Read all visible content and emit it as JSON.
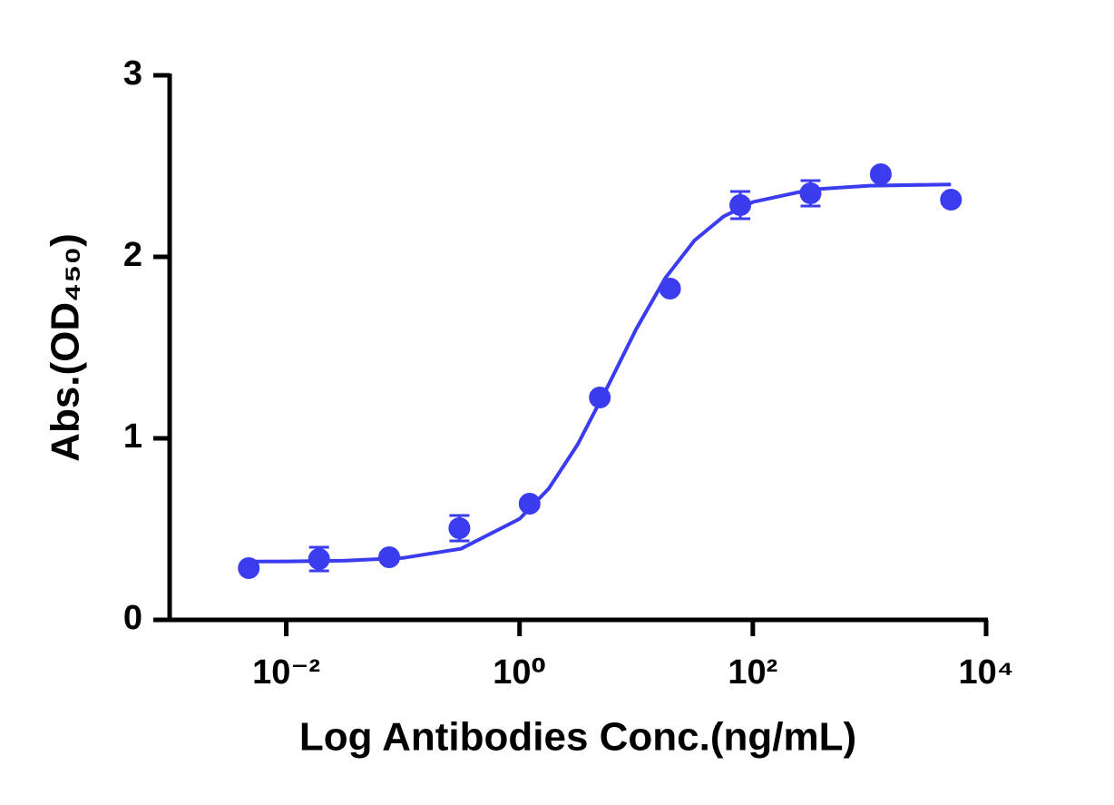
{
  "chart_data": {
    "type": "scatter",
    "x_label": "Log Antibodies Conc.(ng/mL)",
    "y_label": "Abs.(OD₄₅₀)",
    "xscale": "log",
    "xlim": [
      0.001,
      10000
    ],
    "xticks": [
      {
        "value": 0.01,
        "label": "10⁻²"
      },
      {
        "value": 1,
        "label": "10⁰"
      },
      {
        "value": 100,
        "label": "10²"
      },
      {
        "value": 10000,
        "label": "10⁴"
      }
    ],
    "ylim": [
      0,
      3
    ],
    "yticks": [
      0,
      1,
      2,
      3
    ],
    "grid": false,
    "series": [
      {
        "type": "scatter",
        "color": "#3b3bef",
        "x": [
          0.00477,
          0.0191,
          0.0763,
          0.305,
          1.22,
          4.88,
          19.5,
          78.1,
          312.5,
          1250,
          5000
        ],
        "values": [
          0.285,
          0.335,
          0.345,
          0.505,
          0.64,
          1.225,
          1.825,
          2.285,
          2.35,
          2.455,
          2.315
        ],
        "errors": [
          0.01,
          0.065,
          0.02,
          0.07,
          0.02,
          0.02,
          0.02,
          0.075,
          0.07,
          0.02,
          0.02
        ]
      },
      {
        "type": "line",
        "color": "#3b3bef",
        "x": [
          0.0047,
          0.01,
          0.0316,
          0.1,
          0.316,
          1,
          1.78,
          3.16,
          5.62,
          10,
          17.8,
          31.6,
          56.2,
          100,
          316,
          1000,
          5000
        ],
        "values": [
          0.321,
          0.322,
          0.326,
          0.341,
          0.392,
          0.556,
          0.723,
          0.968,
          1.278,
          1.602,
          1.884,
          2.09,
          2.223,
          2.302,
          2.371,
          2.392,
          2.399
        ]
      }
    ]
  }
}
